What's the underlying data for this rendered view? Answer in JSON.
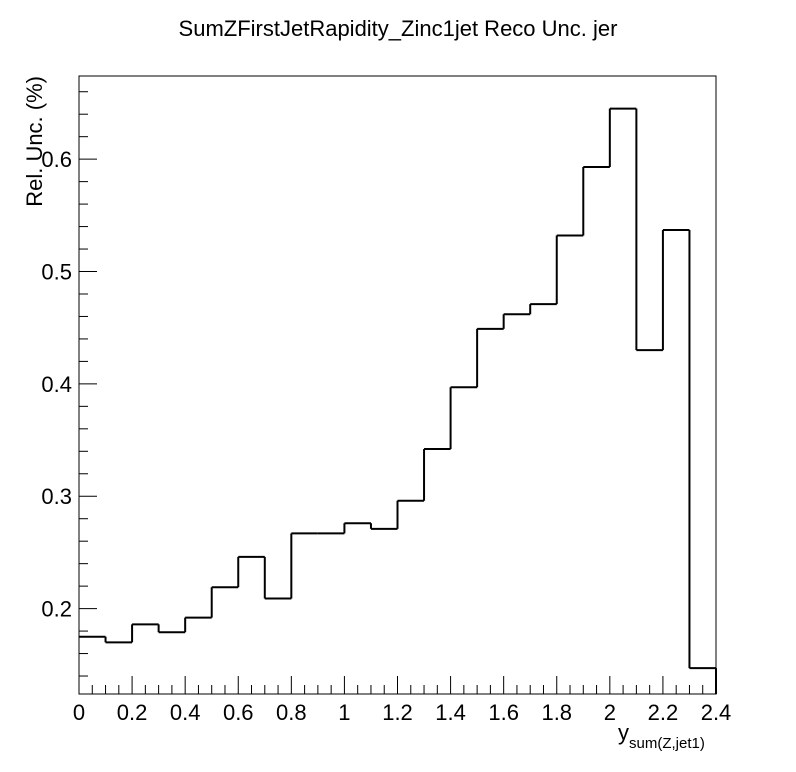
{
  "chart_data": {
    "type": "histogram",
    "title": "SumZFirstJetRapidity_Zinc1jet Reco Unc. jer",
    "xlabel_main": "y",
    "xlabel_sub": "sum(Z,jet1)",
    "ylabel": "Rel. Unc. (%)",
    "xlim": [
      0,
      2.4
    ],
    "ylim": [
      0.124,
      0.674
    ],
    "x_ticks": [
      0,
      0.2,
      0.4,
      0.6,
      0.8,
      1,
      1.2,
      1.4,
      1.6,
      1.8,
      2,
      2.2,
      2.4
    ],
    "x_tick_labels": [
      "0",
      "0.2",
      "0.4",
      "0.6",
      "0.8",
      "1",
      "1.2",
      "1.4",
      "1.6",
      "1.8",
      "2",
      "2.2",
      "2.4"
    ],
    "y_ticks": [
      0.2,
      0.3,
      0.4,
      0.5,
      0.6
    ],
    "y_tick_labels": [
      "0.2",
      "0.3",
      "0.4",
      "0.5",
      "0.6"
    ],
    "bin_edges": [
      0,
      0.1,
      0.2,
      0.3,
      0.4,
      0.5,
      0.6,
      0.7,
      0.8,
      0.9,
      1.0,
      1.1,
      1.2,
      1.3,
      1.4,
      1.5,
      1.6,
      1.7,
      1.8,
      1.9,
      2.0,
      2.1,
      2.2,
      2.3,
      2.4
    ],
    "values": [
      0.175,
      0.17,
      0.186,
      0.179,
      0.192,
      0.219,
      0.246,
      0.209,
      0.267,
      0.267,
      0.276,
      0.271,
      0.296,
      0.342,
      0.397,
      0.449,
      0.462,
      0.471,
      0.532,
      0.593,
      0.645,
      0.43,
      0.537,
      0.147
    ],
    "grid": false,
    "line_color": "#000000"
  }
}
